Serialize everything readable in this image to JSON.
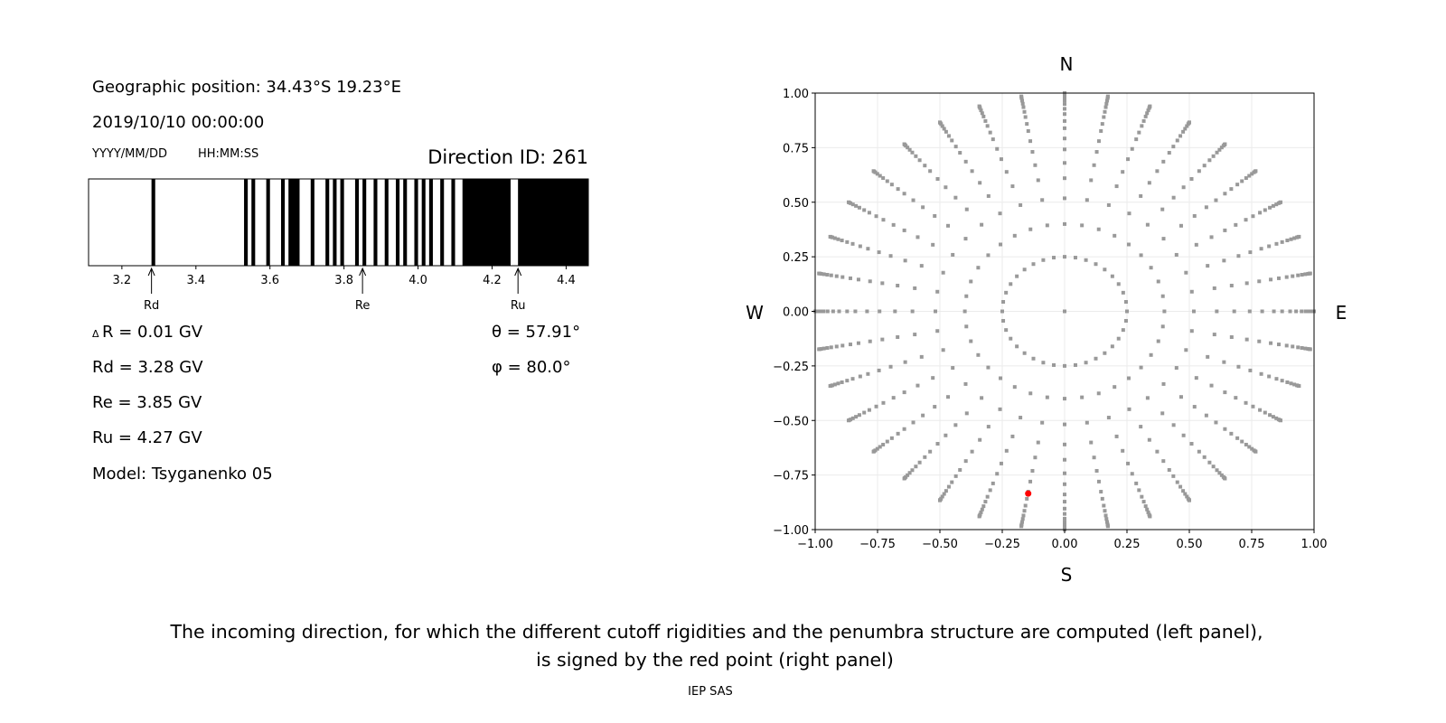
{
  "left_panel": {
    "geo_position": "Geographic position: 34.43°S 19.23°E",
    "datetime": "2019/10/10 00:00:00",
    "date_format": "YYYY/MM/DD",
    "time_format": "HH:MM:SS",
    "direction_id": "Direction ID: 261",
    "delta_r": "R = 0.01 GV",
    "delta_symbol": "Δ",
    "rd": "Rd = 3.28 GV",
    "re": "Re = 3.85 GV",
    "ru": "Ru = 4.27 GV",
    "model": "Model: Tsyganenko 05",
    "theta": "θ = 57.91°",
    "phi": "φ = 80.0°"
  },
  "chart_data": [
    {
      "type": "bar",
      "xlim": [
        3.11,
        4.46
      ],
      "xticks": [
        "3.2",
        "3.4",
        "3.6",
        "3.8",
        "4.0",
        "4.2",
        "4.4"
      ],
      "black_intervals": [
        [
          3.28,
          3.29
        ],
        [
          3.53,
          3.54
        ],
        [
          3.55,
          3.56
        ],
        [
          3.59,
          3.6
        ],
        [
          3.63,
          3.64
        ],
        [
          3.65,
          3.68
        ],
        [
          3.71,
          3.72
        ],
        [
          3.75,
          3.76
        ],
        [
          3.77,
          3.78
        ],
        [
          3.79,
          3.8
        ],
        [
          3.83,
          3.84
        ],
        [
          3.85,
          3.86
        ],
        [
          3.88,
          3.89
        ],
        [
          3.91,
          3.92
        ],
        [
          3.94,
          3.95
        ],
        [
          3.96,
          3.97
        ],
        [
          3.99,
          4.0
        ],
        [
          4.01,
          4.02
        ],
        [
          4.03,
          4.04
        ],
        [
          4.06,
          4.07
        ],
        [
          4.09,
          4.1
        ],
        [
          4.12,
          4.25
        ],
        [
          4.27,
          4.46
        ]
      ],
      "markers": [
        {
          "label": "Rd",
          "value": 3.28
        },
        {
          "label": "Re",
          "value": 3.85
        },
        {
          "label": "Ru",
          "value": 4.27
        }
      ]
    },
    {
      "type": "scatter",
      "xlim": [
        -1,
        1
      ],
      "ylim": [
        -1,
        1
      ],
      "xticks": [
        "−1.00",
        "−0.75",
        "−0.50",
        "−0.25",
        "0.00",
        "0.25",
        "0.50",
        "0.75",
        "1.00"
      ],
      "yticks": [
        "−1.00",
        "−0.75",
        "−0.50",
        "−0.25",
        "0.00",
        "0.25",
        "0.50",
        "0.75",
        "1.00"
      ],
      "grid": true,
      "compass": {
        "north": "N",
        "south": "S",
        "west": "W",
        "east": "E"
      },
      "center_point": [
        0,
        0
      ],
      "ring_radii": [
        0.25,
        0.4,
        0.518,
        0.61,
        0.68,
        0.742,
        0.792,
        0.839,
        0.872,
        0.904,
        0.928,
        0.95,
        0.966,
        0.98,
        0.991,
        0.997,
        1.0
      ],
      "azimuth_step_deg": 10,
      "point_color": "#999999",
      "selected_point": {
        "x": -0.146,
        "y": -0.835,
        "color": "#ff0000"
      }
    }
  ],
  "caption": {
    "line1": "The incoming direction, for which the different cutoff rigidities and the penumbra structure are computed (left panel),",
    "line2": "is signed by the red point (right panel)",
    "credit": "IEP SAS"
  }
}
